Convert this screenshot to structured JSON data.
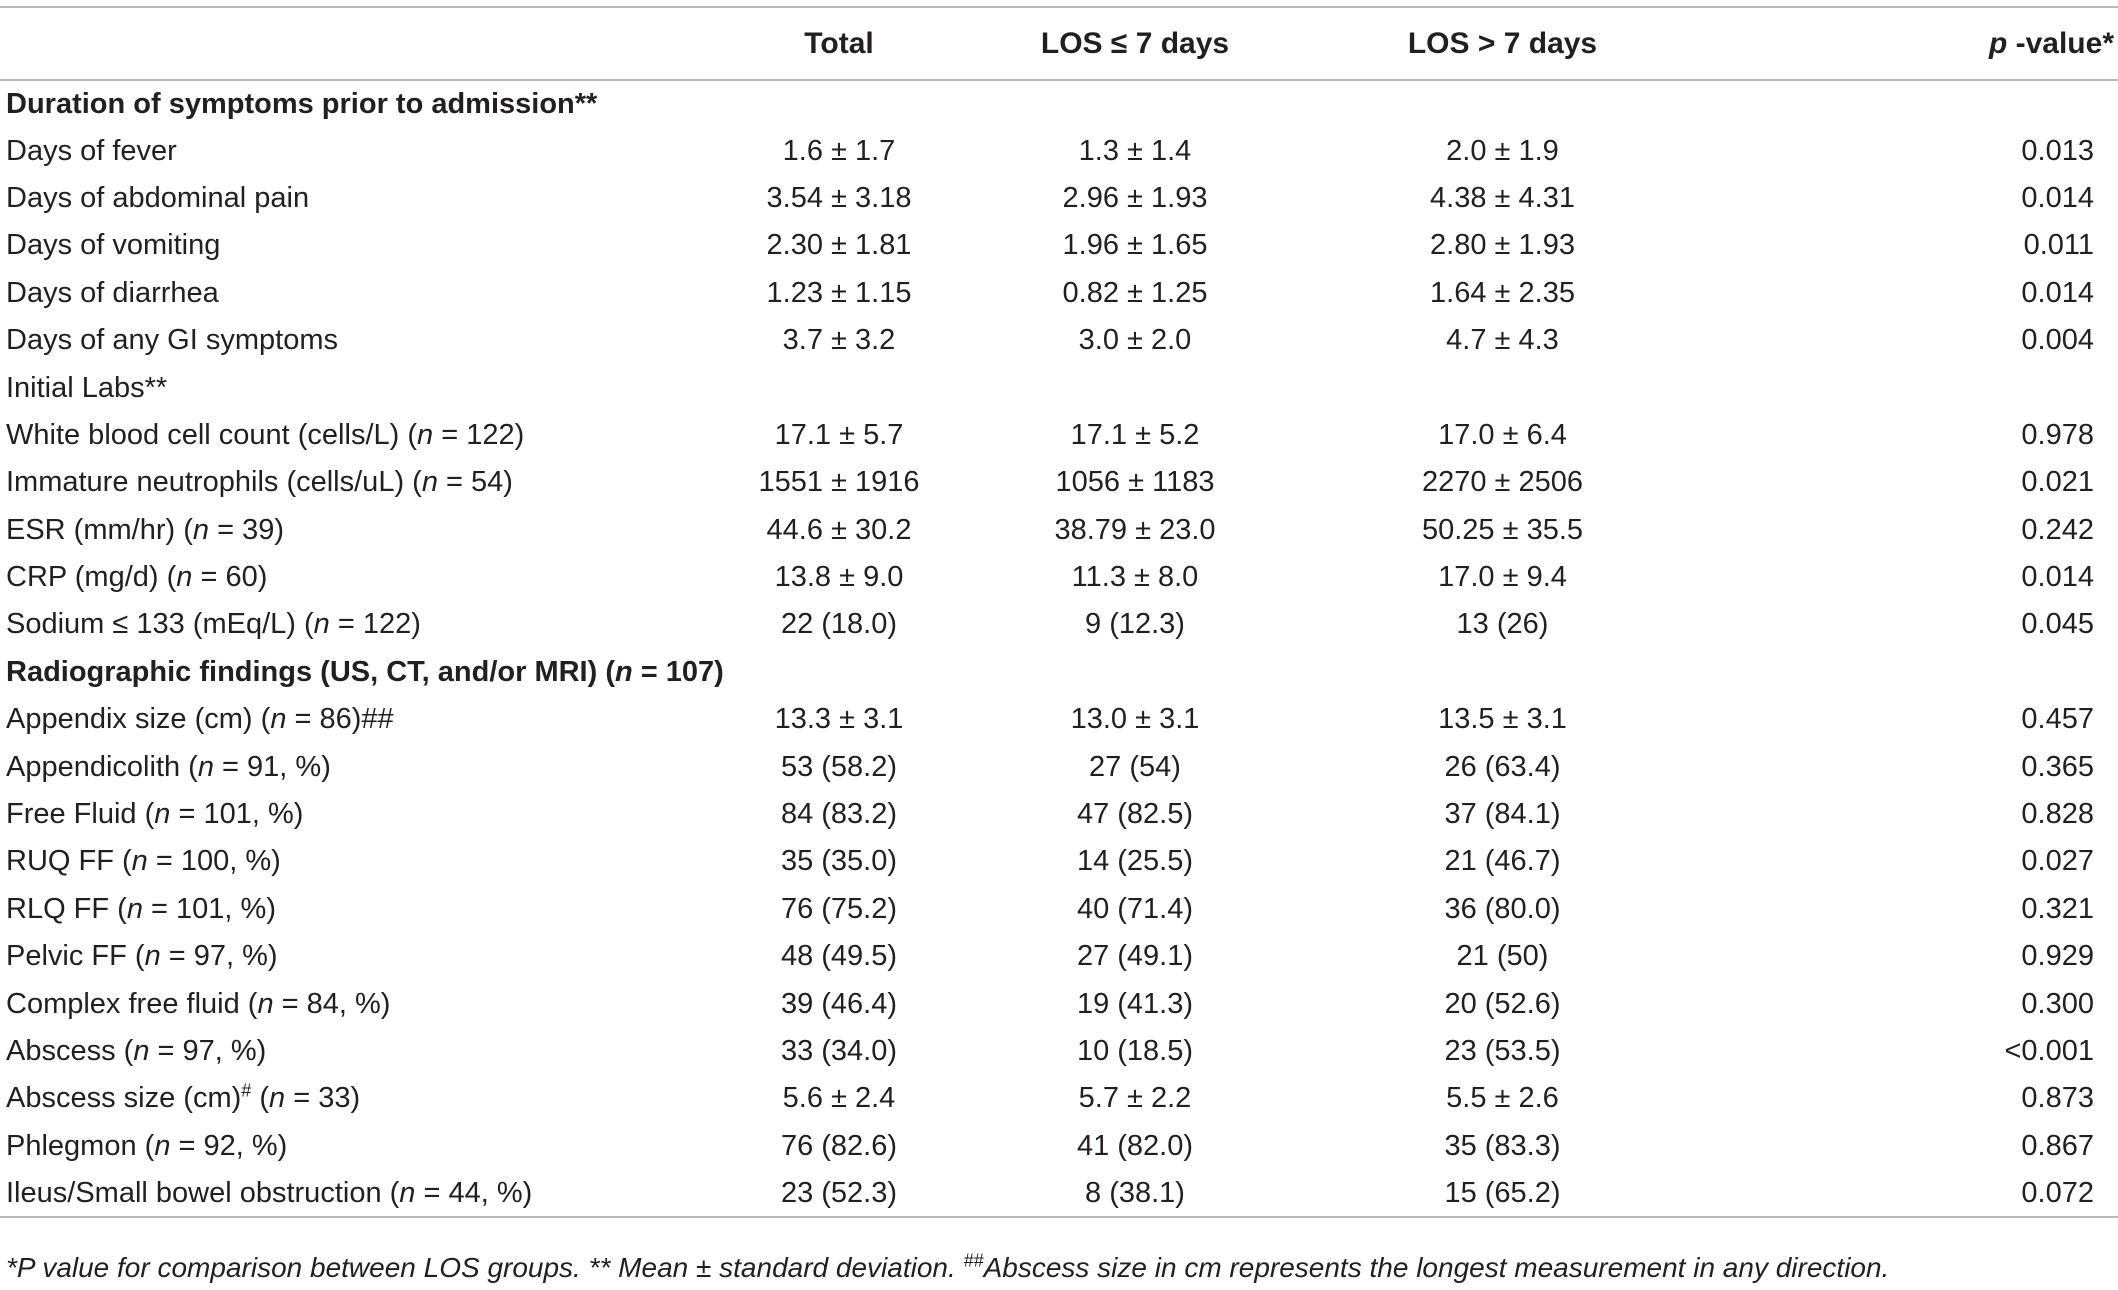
{
  "header": {
    "col0": "",
    "col1": "Total",
    "col2": "LOS ≤ 7 days",
    "col3": "LOS > 7 days",
    "col4_italic": "p",
    "col4_rest": " -value*"
  },
  "rows": [
    {
      "type": "section",
      "pre": "Duration of symptoms prior to admission**"
    },
    {
      "type": "data",
      "pre": "Days of fever",
      "total": "1.6 ± 1.7",
      "los_le7": "1.3 ± 1.4",
      "los_gt7": "2.0 ± 1.9",
      "p": "0.013"
    },
    {
      "type": "data",
      "pre": "Days of abdominal pain",
      "total": "3.54 ± 3.18",
      "los_le7": "2.96 ± 1.93",
      "los_gt7": "4.38 ± 4.31",
      "p": "0.014"
    },
    {
      "type": "data",
      "pre": "Days of vomiting",
      "total": "2.30 ± 1.81",
      "los_le7": "1.96 ± 1.65",
      "los_gt7": "2.80 ± 1.93",
      "p": "0.011"
    },
    {
      "type": "data",
      "pre": "Days of diarrhea",
      "total": "1.23 ± 1.15",
      "los_le7": "0.82 ± 1.25",
      "los_gt7": "1.64 ± 2.35",
      "p": "0.014"
    },
    {
      "type": "data",
      "pre": "Days of any GI symptoms",
      "total": "3.7 ± 3.2",
      "los_le7": "3.0 ± 2.0",
      "los_gt7": "4.7 ± 4.3",
      "p": "0.004"
    },
    {
      "type": "data",
      "pre": "Initial Labs**",
      "total": "",
      "los_le7": "",
      "los_gt7": "",
      "p": ""
    },
    {
      "type": "data",
      "pre": "White blood cell count (cells/L) (",
      "n": "n",
      "post": " = 122)",
      "total": "17.1 ± 5.7",
      "los_le7": "17.1 ± 5.2",
      "los_gt7": "17.0 ± 6.4",
      "p": "0.978"
    },
    {
      "type": "data",
      "pre": "Immature neutrophils (cells/uL) (",
      "n": "n",
      "post": " = 54)",
      "total": "1551 ± 1916",
      "los_le7": "1056 ± 1183",
      "los_gt7": "2270 ± 2506",
      "p": "0.021"
    },
    {
      "type": "data",
      "pre": "ESR (mm/hr) (",
      "n": "n",
      "post": " = 39)",
      "total": "44.6 ± 30.2",
      "los_le7": "38.79 ± 23.0",
      "los_gt7": "50.25 ± 35.5",
      "p": "0.242"
    },
    {
      "type": "data",
      "pre": "CRP (mg/d) (",
      "n": "n",
      "post": " = 60)",
      "total": "13.8 ± 9.0",
      "los_le7": "11.3 ± 8.0",
      "los_gt7": "17.0 ± 9.4",
      "p": "0.014"
    },
    {
      "type": "data",
      "pre": "Sodium ≤ 133 (mEq/L) (",
      "n": "n",
      "post": " = 122)",
      "total": "22 (18.0)",
      "los_le7": "9 (12.3)",
      "los_gt7": "13 (26)",
      "p": "0.045"
    },
    {
      "type": "section",
      "pre": "Radiographic findings (US, CT, and/or MRI) (",
      "n": "n",
      "post": " = 107)"
    },
    {
      "type": "data",
      "pre": "Appendix size (cm) (",
      "n": "n",
      "post": " = 86)##",
      "total": "13.3 ± 3.1",
      "los_le7": "13.0 ± 3.1",
      "los_gt7": "13.5 ± 3.1",
      "p": "0.457"
    },
    {
      "type": "data",
      "pre": "Appendicolith (",
      "n": "n",
      "post": " = 91, %)",
      "total": "53 (58.2)",
      "los_le7": "27 (54)",
      "los_gt7": "26 (63.4)",
      "p": "0.365"
    },
    {
      "type": "data",
      "pre": "Free Fluid (",
      "n": "n",
      "post": " = 101, %)",
      "total": "84 (83.2)",
      "los_le7": "47 (82.5)",
      "los_gt7": "37 (84.1)",
      "p": "0.828"
    },
    {
      "type": "data",
      "pre": "RUQ FF (",
      "n": "n",
      "post": " = 100, %)",
      "total": "35 (35.0)",
      "los_le7": "14 (25.5)",
      "los_gt7": "21 (46.7)",
      "p": "0.027"
    },
    {
      "type": "data",
      "pre": "RLQ FF (",
      "n": "n",
      "post": " = 101, %)",
      "total": "76 (75.2)",
      "los_le7": "40 (71.4)",
      "los_gt7": "36 (80.0)",
      "p": "0.321"
    },
    {
      "type": "data",
      "pre": "Pelvic FF (",
      "n": "n",
      "post": " = 97, %)",
      "total": "48 (49.5)",
      "los_le7": "27 (49.1)",
      "los_gt7": "21 (50)",
      "p": "0.929"
    },
    {
      "type": "data",
      "pre": "Complex free fluid (",
      "n": "n",
      "post": " = 84, %)",
      "total": "39 (46.4)",
      "los_le7": "19 (41.3)",
      "los_gt7": "20 (52.6)",
      "p": "0.300"
    },
    {
      "type": "data",
      "pre": "Abscess (",
      "n": "n",
      "post": " = 97, %)",
      "total": "33 (34.0)",
      "los_le7": "10 (18.5)",
      "los_gt7": "23 (53.5)",
      "p": "<0.001"
    },
    {
      "type": "data",
      "pre": "Abscess size (cm)",
      "sup": "#",
      "pre2": " (",
      "n": "n",
      "post": " = 33)",
      "total": "5.6 ± 2.4",
      "los_le7": "5.7 ± 2.2",
      "los_gt7": "5.5 ± 2.6",
      "p": "0.873"
    },
    {
      "type": "data",
      "pre": "Phlegmon (",
      "n": "n",
      "post": " = 92, %)",
      "total": "76 (82.6)",
      "los_le7": "41 (82.0)",
      "los_gt7": "35 (83.3)",
      "p": "0.867"
    },
    {
      "type": "data",
      "pre": "Ileus/Small bowel obstruction (",
      "n": "n",
      "post": " = 44, %)",
      "total": "23 (52.3)",
      "los_le7": "8 (38.1)",
      "los_gt7": "15 (65.2)",
      "p": "0.072"
    }
  ],
  "footnote": {
    "part1": "*P value for comparison between LOS groups. ** Mean ± standard deviation. ",
    "sup": "##",
    "part2": "Abscess size in cm represents the longest measurement in any direction."
  }
}
